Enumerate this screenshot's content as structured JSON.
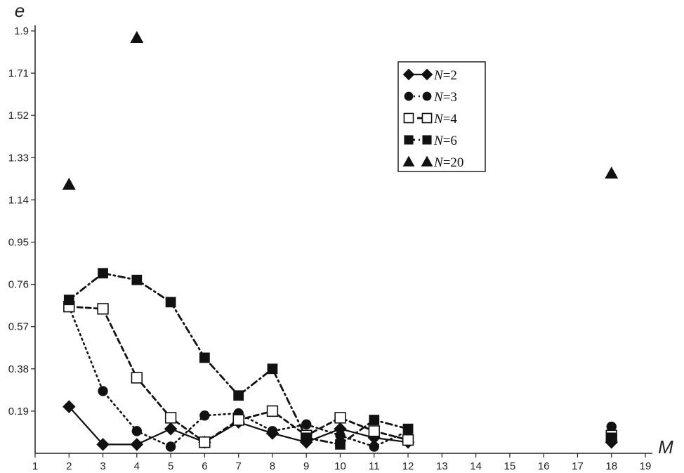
{
  "chart_data": {
    "type": "scatter",
    "xlabel": "M",
    "ylabel": "e",
    "xlim": [
      1,
      19
    ],
    "ylim": [
      0,
      1.9
    ],
    "x_ticks": [
      "1",
      "2",
      "3",
      "4",
      "5",
      "6",
      "7",
      "8",
      "9",
      "10",
      "11",
      "12",
      "13",
      "14",
      "15",
      "16",
      "17",
      "18",
      "19"
    ],
    "y_ticks": [
      "0.19",
      "0.38",
      "0.57",
      "0.76",
      "0.95",
      "1.14",
      "1.33",
      "1.52",
      "1.71",
      "1.9"
    ],
    "legend_position": "top-right",
    "series": [
      {
        "name": "N=2",
        "name_var": "N",
        "name_rest": "=2",
        "marker": "diamond",
        "line": "solid",
        "fill": "filled",
        "points": [
          [
            2,
            0.21
          ],
          [
            3,
            0.04
          ],
          [
            4,
            0.04
          ],
          [
            5,
            0.11
          ],
          [
            6,
            0.05
          ],
          [
            7,
            0.14
          ],
          [
            8,
            0.09
          ],
          [
            9,
            0.05
          ],
          [
            10,
            0.11
          ],
          [
            11,
            0.07
          ],
          [
            12,
            0.05
          ],
          [
            18,
            0.05
          ]
        ]
      },
      {
        "name": "N=3",
        "name_var": "N",
        "name_rest": "=3",
        "marker": "circle",
        "line": "dotted",
        "fill": "filled",
        "points": [
          [
            2,
            0.66
          ],
          [
            3,
            0.28
          ],
          [
            4,
            0.1
          ],
          [
            5,
            0.03
          ],
          [
            6,
            0.17
          ],
          [
            7,
            0.18
          ],
          [
            8,
            0.1
          ],
          [
            9,
            0.13
          ],
          [
            10,
            0.08
          ],
          [
            11,
            0.03
          ],
          [
            12,
            0.1
          ],
          [
            18,
            0.12
          ]
        ]
      },
      {
        "name": "N=4",
        "name_var": "N",
        "name_rest": "=4",
        "marker": "square",
        "line": "dashed",
        "fill": "open",
        "points": [
          [
            2,
            0.66
          ],
          [
            3,
            0.65
          ],
          [
            4,
            0.34
          ],
          [
            5,
            0.16
          ],
          [
            6,
            0.05
          ],
          [
            7,
            0.15
          ],
          [
            8,
            0.19
          ],
          [
            9,
            0.08
          ],
          [
            10,
            0.16
          ],
          [
            11,
            0.1
          ],
          [
            12,
            0.06
          ],
          [
            18,
            0.08
          ]
        ]
      },
      {
        "name": "N=6",
        "name_var": "N",
        "name_rest": "=6",
        "marker": "square",
        "line": "dashdot",
        "fill": "filled",
        "points": [
          [
            2,
            0.69
          ],
          [
            3,
            0.81
          ],
          [
            4,
            0.78
          ],
          [
            5,
            0.68
          ],
          [
            6,
            0.43
          ],
          [
            7,
            0.26
          ],
          [
            8,
            0.38
          ],
          [
            9,
            0.07
          ],
          [
            10,
            0.04
          ],
          [
            11,
            0.15
          ],
          [
            12,
            0.11
          ],
          [
            18,
            0.07
          ]
        ]
      },
      {
        "name": "N=20",
        "name_var": "N",
        "name_rest": "=20",
        "marker": "triangle",
        "line": "none",
        "fill": "filled",
        "points": [
          [
            2,
            1.21
          ],
          [
            4,
            1.87
          ],
          [
            18,
            1.26
          ]
        ]
      }
    ]
  }
}
